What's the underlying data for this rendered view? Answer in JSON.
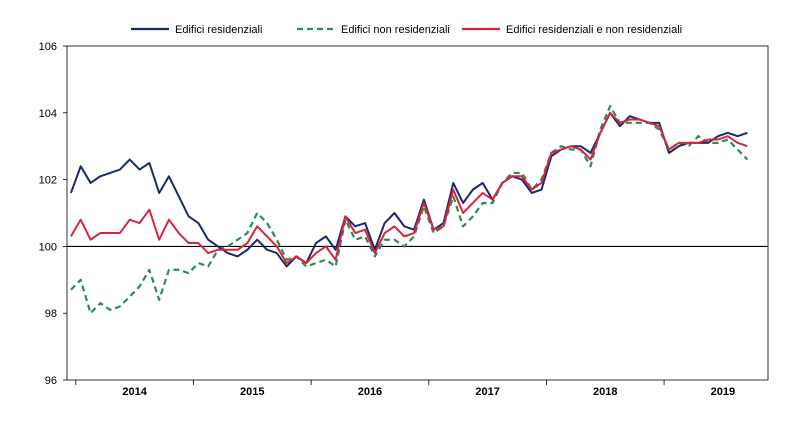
{
  "chart_data": {
    "type": "line",
    "title": "",
    "xlabel": "",
    "ylabel": "",
    "ylim": [
      96,
      106
    ],
    "yticks": [
      96,
      98,
      100,
      102,
      104,
      106
    ],
    "reference_line": 100,
    "start": {
      "year": 2013,
      "month": 12
    },
    "year_labels": [
      "2014",
      "2015",
      "2016",
      "2017",
      "2018",
      "2019"
    ],
    "series": [
      {
        "name": "Edifici residenziali",
        "color": "#1b2a6b",
        "dash": "solid",
        "values": [
          101.6,
          102.4,
          101.9,
          102.1,
          102.2,
          102.3,
          102.6,
          102.3,
          102.5,
          101.6,
          102.1,
          101.5,
          100.9,
          100.7,
          100.2,
          100.0,
          99.8,
          99.7,
          99.9,
          100.2,
          99.9,
          99.8,
          99.4,
          99.7,
          99.5,
          100.1,
          100.3,
          99.9,
          100.9,
          100.6,
          100.7,
          99.9,
          100.7,
          101.0,
          100.6,
          100.5,
          101.4,
          100.5,
          100.7,
          101.9,
          101.3,
          101.7,
          101.9,
          101.4,
          101.9,
          102.1,
          102.0,
          101.6,
          101.7,
          102.7,
          102.9,
          103.0,
          103.0,
          102.8,
          103.4,
          104.0,
          103.6,
          103.9,
          103.8,
          103.7,
          103.7,
          102.8,
          103.0,
          103.1,
          103.1,
          103.1,
          103.3,
          103.4,
          103.3,
          103.4
        ]
      },
      {
        "name": "Edifici non residenziali",
        "color": "#2e8b57",
        "dash": "dashed",
        "values": [
          98.7,
          99.0,
          98.0,
          98.3,
          98.1,
          98.2,
          98.5,
          98.8,
          99.3,
          98.4,
          99.3,
          99.3,
          99.2,
          99.5,
          99.4,
          99.9,
          100.0,
          100.2,
          100.4,
          101.0,
          100.7,
          100.2,
          99.6,
          99.7,
          99.4,
          99.5,
          99.6,
          99.4,
          100.8,
          100.2,
          100.3,
          99.7,
          100.2,
          100.2,
          100.0,
          100.3,
          101.2,
          100.4,
          100.6,
          101.5,
          100.6,
          100.9,
          101.3,
          101.3,
          101.9,
          102.2,
          102.2,
          101.7,
          102.0,
          102.8,
          103.0,
          102.9,
          102.9,
          102.4,
          103.5,
          104.2,
          103.7,
          103.7,
          103.7,
          103.7,
          103.5,
          102.9,
          103.1,
          103.0,
          103.3,
          103.1,
          103.1,
          103.2,
          102.9,
          102.6
        ]
      },
      {
        "name": "Edifici residenziali e non residenziali",
        "color": "#d7263d",
        "dash": "solid",
        "values": [
          100.3,
          100.8,
          100.2,
          100.4,
          100.4,
          100.4,
          100.8,
          100.7,
          101.1,
          100.2,
          100.8,
          100.4,
          100.1,
          100.1,
          99.8,
          99.9,
          99.9,
          99.9,
          100.1,
          100.6,
          100.3,
          100.0,
          99.5,
          99.7,
          99.5,
          99.8,
          100.0,
          99.6,
          100.9,
          100.4,
          100.5,
          99.8,
          100.4,
          100.6,
          100.3,
          100.4,
          101.3,
          100.5,
          100.6,
          101.7,
          101.0,
          101.3,
          101.6,
          101.4,
          101.9,
          102.1,
          102.1,
          101.7,
          101.9,
          102.8,
          102.9,
          103.0,
          102.9,
          102.6,
          103.4,
          104.0,
          103.7,
          103.8,
          103.8,
          103.7,
          103.6,
          102.9,
          103.1,
          103.1,
          103.1,
          103.2,
          103.2,
          103.3,
          103.1,
          103.0
        ]
      }
    ]
  }
}
